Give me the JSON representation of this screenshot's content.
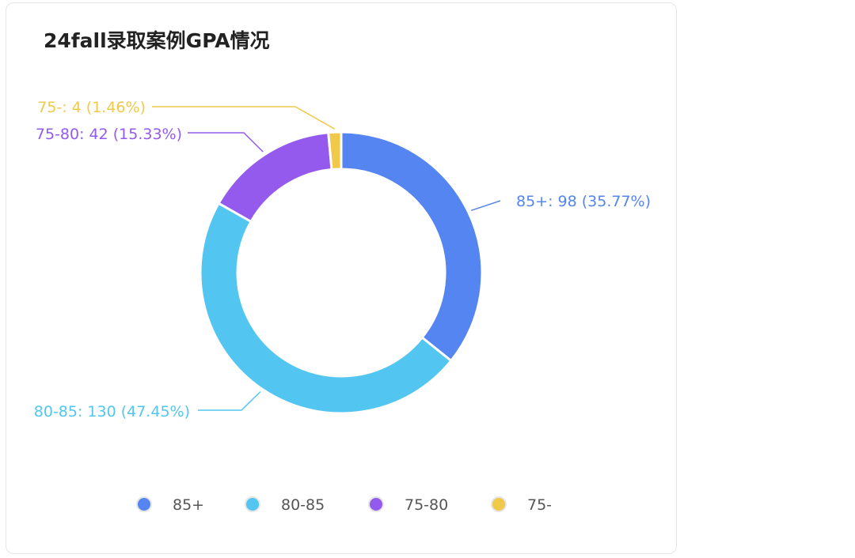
{
  "chart_data": {
    "type": "pie",
    "title": "24fall录取案例GPA情况",
    "categories": [
      "85+",
      "80-85",
      "75-80",
      "75-"
    ],
    "values": [
      98,
      130,
      42,
      4
    ],
    "percents": [
      "35.77%",
      "47.45%",
      "15.33%",
      "1.46%"
    ],
    "colors": [
      "#5585f0",
      "#52c6f0",
      "#935aed",
      "#f0c94b"
    ],
    "legend_position": "bottom",
    "donut": true
  }
}
